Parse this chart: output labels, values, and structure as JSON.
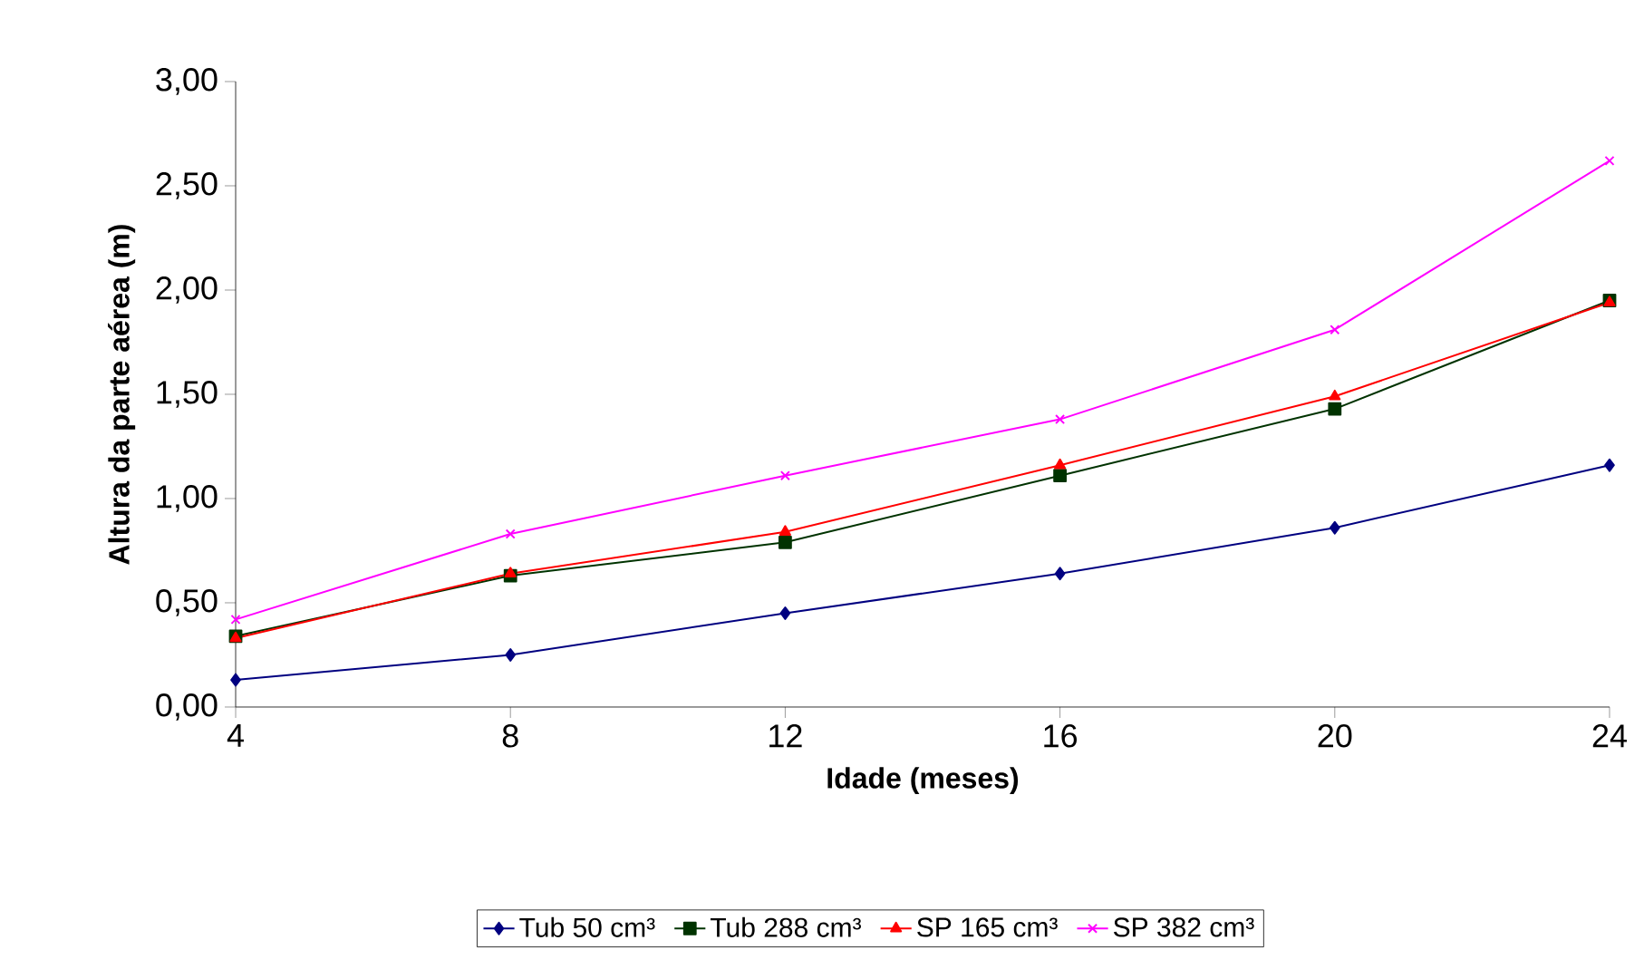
{
  "chart_data": {
    "type": "line",
    "xlabel": "Idade (meses)",
    "ylabel": "Altura da parte aérea (m)",
    "x": [
      4,
      8,
      12,
      16,
      20,
      24
    ],
    "series": [
      {
        "name": "Tub 50 cm³",
        "color": "#000080",
        "marker": "diamond",
        "values": [
          0.13,
          0.25,
          0.45,
          0.64,
          0.86,
          1.16
        ]
      },
      {
        "name": "Tub 288 cm³",
        "color": "#003300",
        "marker": "square",
        "values": [
          0.34,
          0.63,
          0.79,
          1.11,
          1.43,
          1.95
        ]
      },
      {
        "name": "SP 165 cm³",
        "color": "#ff0000",
        "marker": "triangle",
        "values": [
          0.33,
          0.64,
          0.84,
          1.16,
          1.49,
          1.94
        ]
      },
      {
        "name": "SP 382 cm³",
        "color": "#ff00ff",
        "marker": "cross",
        "values": [
          0.42,
          0.83,
          1.11,
          1.38,
          1.81,
          2.62
        ]
      }
    ],
    "xlim": [
      4,
      24
    ],
    "xticks": [
      4,
      8,
      12,
      16,
      20,
      24
    ],
    "ylim": [
      0,
      3
    ],
    "yticks": [
      {
        "value": 0,
        "label": "0,00"
      },
      {
        "value": 0.5,
        "label": "0,50"
      },
      {
        "value": 1,
        "label": "1,00"
      },
      {
        "value": 1.5,
        "label": "1,50"
      },
      {
        "value": 2,
        "label": "2,00"
      },
      {
        "value": 2.5,
        "label": "2,50"
      },
      {
        "value": 3,
        "label": "3,00"
      }
    ],
    "grid": false,
    "legend": "bottom",
    "line_style": "solid"
  }
}
